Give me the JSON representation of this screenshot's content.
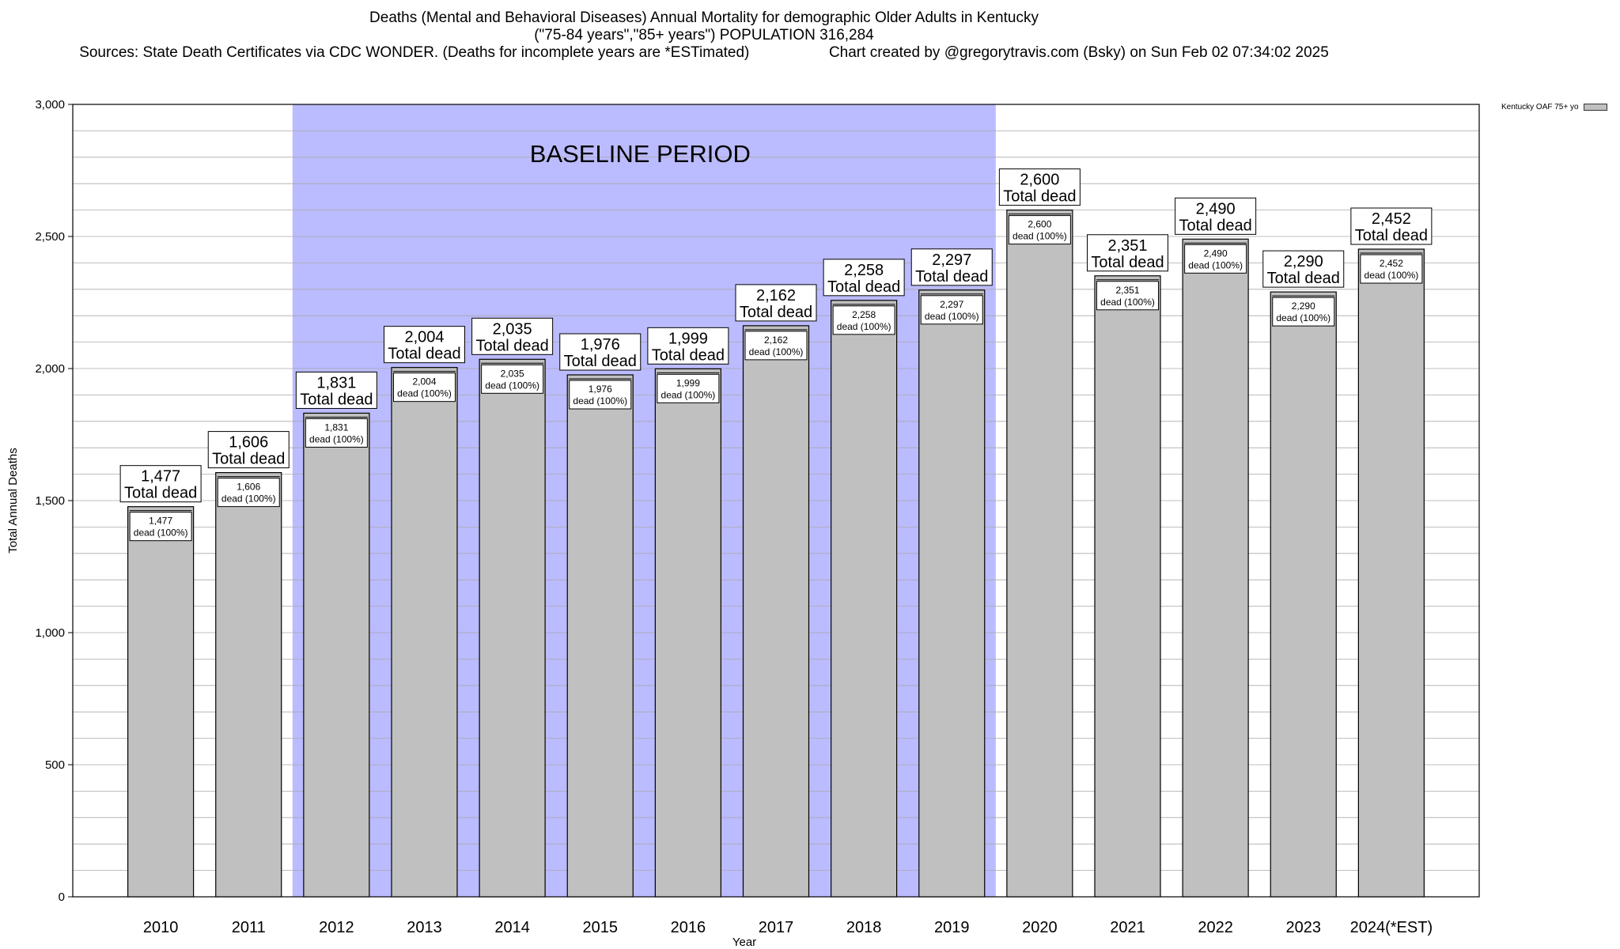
{
  "title": {
    "line1": "Deaths (Mental and Behavioral Diseases) Annual Mortality for demographic Older Adults in Kentucky",
    "line2": "(\"75-84 years\",\"85+ years\") POPULATION 316,284",
    "sources": "Sources: State Death Certificates via CDC WONDER. (Deaths for incomplete years are *ESTimated)",
    "credit": "Chart created by @gregorytravis.com (Bsky) on Sun Feb 02 07:34:02 2025"
  },
  "legend": {
    "label": "Kentucky OAF 75+ yo"
  },
  "chart_data": {
    "type": "bar",
    "title": "Deaths (Mental and Behavioral Diseases) Annual Mortality for demographic Older Adults in Kentucky",
    "xlabel": "Year",
    "ylabel": "Total Annual Deaths",
    "ylim": [
      0,
      3000
    ],
    "yticks": [
      0,
      500,
      1000,
      1500,
      2000,
      2500,
      3000
    ],
    "ytick_labels": [
      "0",
      "500",
      "1,000",
      "1,500",
      "2,000",
      "2,500",
      "3,000"
    ],
    "grid": true,
    "categories": [
      "2010",
      "2011",
      "2012",
      "2013",
      "2014",
      "2015",
      "2016",
      "2017",
      "2018",
      "2019",
      "2020",
      "2021",
      "2022",
      "2023",
      "2024(*EST)"
    ],
    "values": [
      1477,
      1606,
      1831,
      2004,
      2035,
      1976,
      1999,
      2162,
      2258,
      2297,
      2600,
      2351,
      2490,
      2290,
      2452
    ],
    "value_labels": [
      "1,477",
      "1,606",
      "1,831",
      "2,004",
      "2,035",
      "1,976",
      "1,999",
      "2,162",
      "2,258",
      "2,297",
      "2,600",
      "2,351",
      "2,490",
      "2,290",
      "2,452"
    ],
    "total_label_suffix": "Total dead",
    "inner_label_suffix": "dead (100%)",
    "baseline": {
      "label": "BASELINE PERIOD",
      "start": "2012",
      "end": "2019",
      "color": "#bbbbff"
    },
    "bar_color": "#c0c0c0",
    "legend_position": "top-right"
  }
}
